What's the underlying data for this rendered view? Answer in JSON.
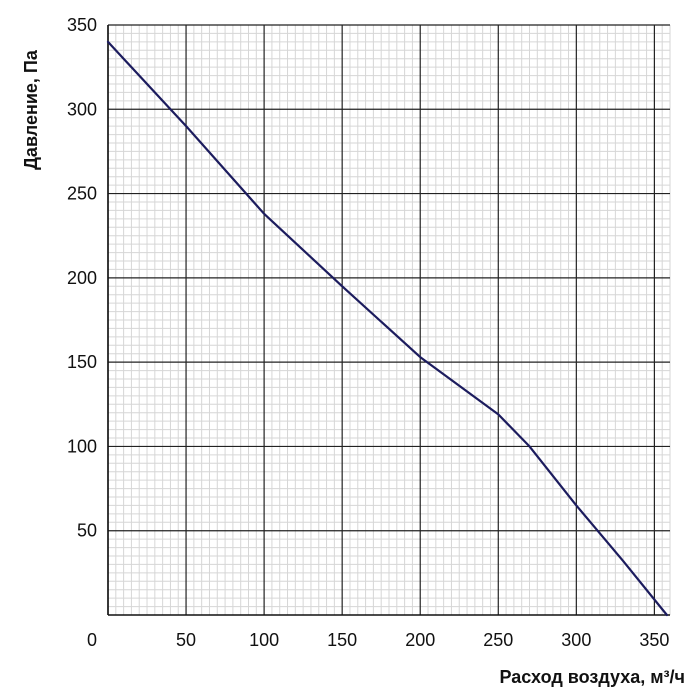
{
  "chart_data": {
    "type": "line",
    "xlabel": "Расход воздуха, м³/ч",
    "ylabel": "Давление, Па",
    "xlim": [
      0,
      360
    ],
    "ylim": [
      0,
      350
    ],
    "x_ticks": [
      0,
      50,
      100,
      150,
      200,
      250,
      300,
      350
    ],
    "y_ticks": [
      50,
      100,
      150,
      200,
      250,
      300,
      350
    ],
    "grid": true,
    "minor_grid": true,
    "series": [
      {
        "x": [
          0,
          50,
          100,
          150,
          200,
          250,
          270,
          300,
          330,
          358
        ],
        "y": [
          340,
          290,
          238,
          195,
          153,
          119,
          100,
          65,
          32,
          0
        ],
        "color": "#1c1c5e"
      }
    ]
  }
}
